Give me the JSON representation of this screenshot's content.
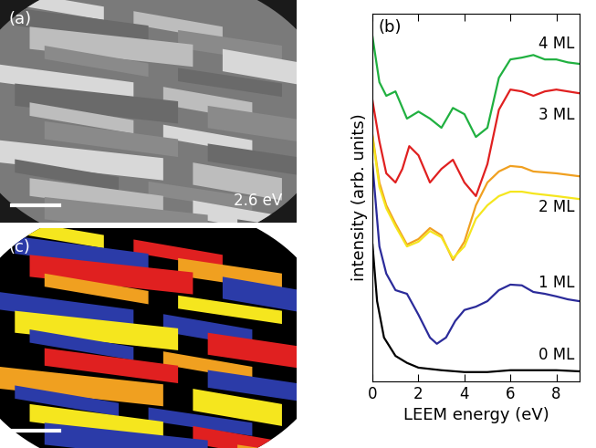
{
  "panels": {
    "a": {
      "label": "(a)",
      "energy": "2.6 eV"
    },
    "c": {
      "label": "(c)"
    }
  },
  "chart_data": {
    "type": "line",
    "title": "(b)",
    "x_label": "LEEM energy (eV)",
    "y_label": "intensity (arb. units)",
    "xlim": [
      0,
      9
    ],
    "xticks": [
      0,
      2,
      4,
      6,
      8
    ],
    "ylim": [
      0,
      10
    ],
    "tick_labels": "x",
    "grid": false,
    "series": [
      {
        "name": "0 ML",
        "color": "#000000",
        "x": [
          0,
          0.2,
          0.5,
          1,
          1.5,
          2,
          3,
          4,
          5,
          6,
          7,
          8,
          9
        ],
        "values": [
          3.72,
          2.18,
          1.19,
          0.69,
          0.5,
          0.37,
          0.3,
          0.25,
          0.25,
          0.3,
          0.3,
          0.3,
          0.27
        ]
      },
      {
        "name": "1 ML",
        "color": "#2b2b9a",
        "x": [
          0,
          0.3,
          0.6,
          1,
          1.5,
          2,
          2.5,
          2.8,
          3.2,
          3.6,
          4,
          4.5,
          5,
          5.5,
          6,
          6.5,
          7,
          7.5,
          8,
          8.5,
          9
        ],
        "values": [
          5.91,
          3.67,
          2.93,
          2.48,
          2.38,
          1.81,
          1.19,
          1.02,
          1.19,
          1.64,
          1.94,
          2.03,
          2.18,
          2.48,
          2.63,
          2.61,
          2.43,
          2.38,
          2.31,
          2.23,
          2.18
        ]
      },
      {
        "name": "2 ML",
        "color": "#f0a020",
        "x": [
          0,
          0.3,
          0.6,
          1,
          1.5,
          2,
          2.5,
          3,
          3.5,
          4,
          4.5,
          5,
          5.5,
          6,
          6.5,
          7,
          8,
          9
        ],
        "values": [
          6.7,
          5.41,
          4.79,
          4.29,
          3.72,
          3.87,
          4.17,
          3.97,
          3.3,
          3.8,
          4.79,
          5.41,
          5.71,
          5.86,
          5.83,
          5.71,
          5.66,
          5.58
        ]
      },
      {
        "name": null,
        "color": "#f5e61e",
        "x": [
          0,
          0.3,
          0.6,
          1,
          1.5,
          2,
          2.5,
          3,
          3.5,
          4,
          4.5,
          5,
          5.5,
          6,
          6.5,
          7,
          8,
          9
        ],
        "values": [
          6.65,
          5.29,
          4.71,
          4.22,
          3.67,
          3.8,
          4.09,
          3.92,
          3.35,
          3.67,
          4.42,
          4.79,
          5.04,
          5.16,
          5.16,
          5.11,
          5.04,
          4.96
        ]
      },
      {
        "name": "3 ML",
        "color": "#e02020",
        "x": [
          0,
          0.3,
          0.6,
          1,
          1.3,
          1.6,
          2,
          2.5,
          3,
          3.5,
          4,
          4.5,
          5,
          5.5,
          6,
          6.5,
          7,
          7.5,
          8,
          9
        ],
        "values": [
          7.64,
          6.53,
          5.66,
          5.41,
          5.78,
          6.4,
          6.15,
          5.41,
          5.78,
          6.03,
          5.41,
          5.04,
          5.91,
          7.39,
          7.94,
          7.89,
          7.77,
          7.89,
          7.94,
          7.84
        ]
      },
      {
        "name": "4 ML",
        "color": "#20b040",
        "x": [
          0,
          0.3,
          0.6,
          1,
          1.5,
          2,
          2.5,
          3,
          3.5,
          4,
          4.5,
          5,
          5.5,
          6,
          6.5,
          7,
          7.5,
          8,
          8.5,
          9
        ],
        "values": [
          9.38,
          8.14,
          7.77,
          7.89,
          7.15,
          7.34,
          7.15,
          6.9,
          7.44,
          7.27,
          6.65,
          6.9,
          8.26,
          8.76,
          8.81,
          8.88,
          8.76,
          8.76,
          8.68,
          8.64
        ]
      }
    ]
  }
}
